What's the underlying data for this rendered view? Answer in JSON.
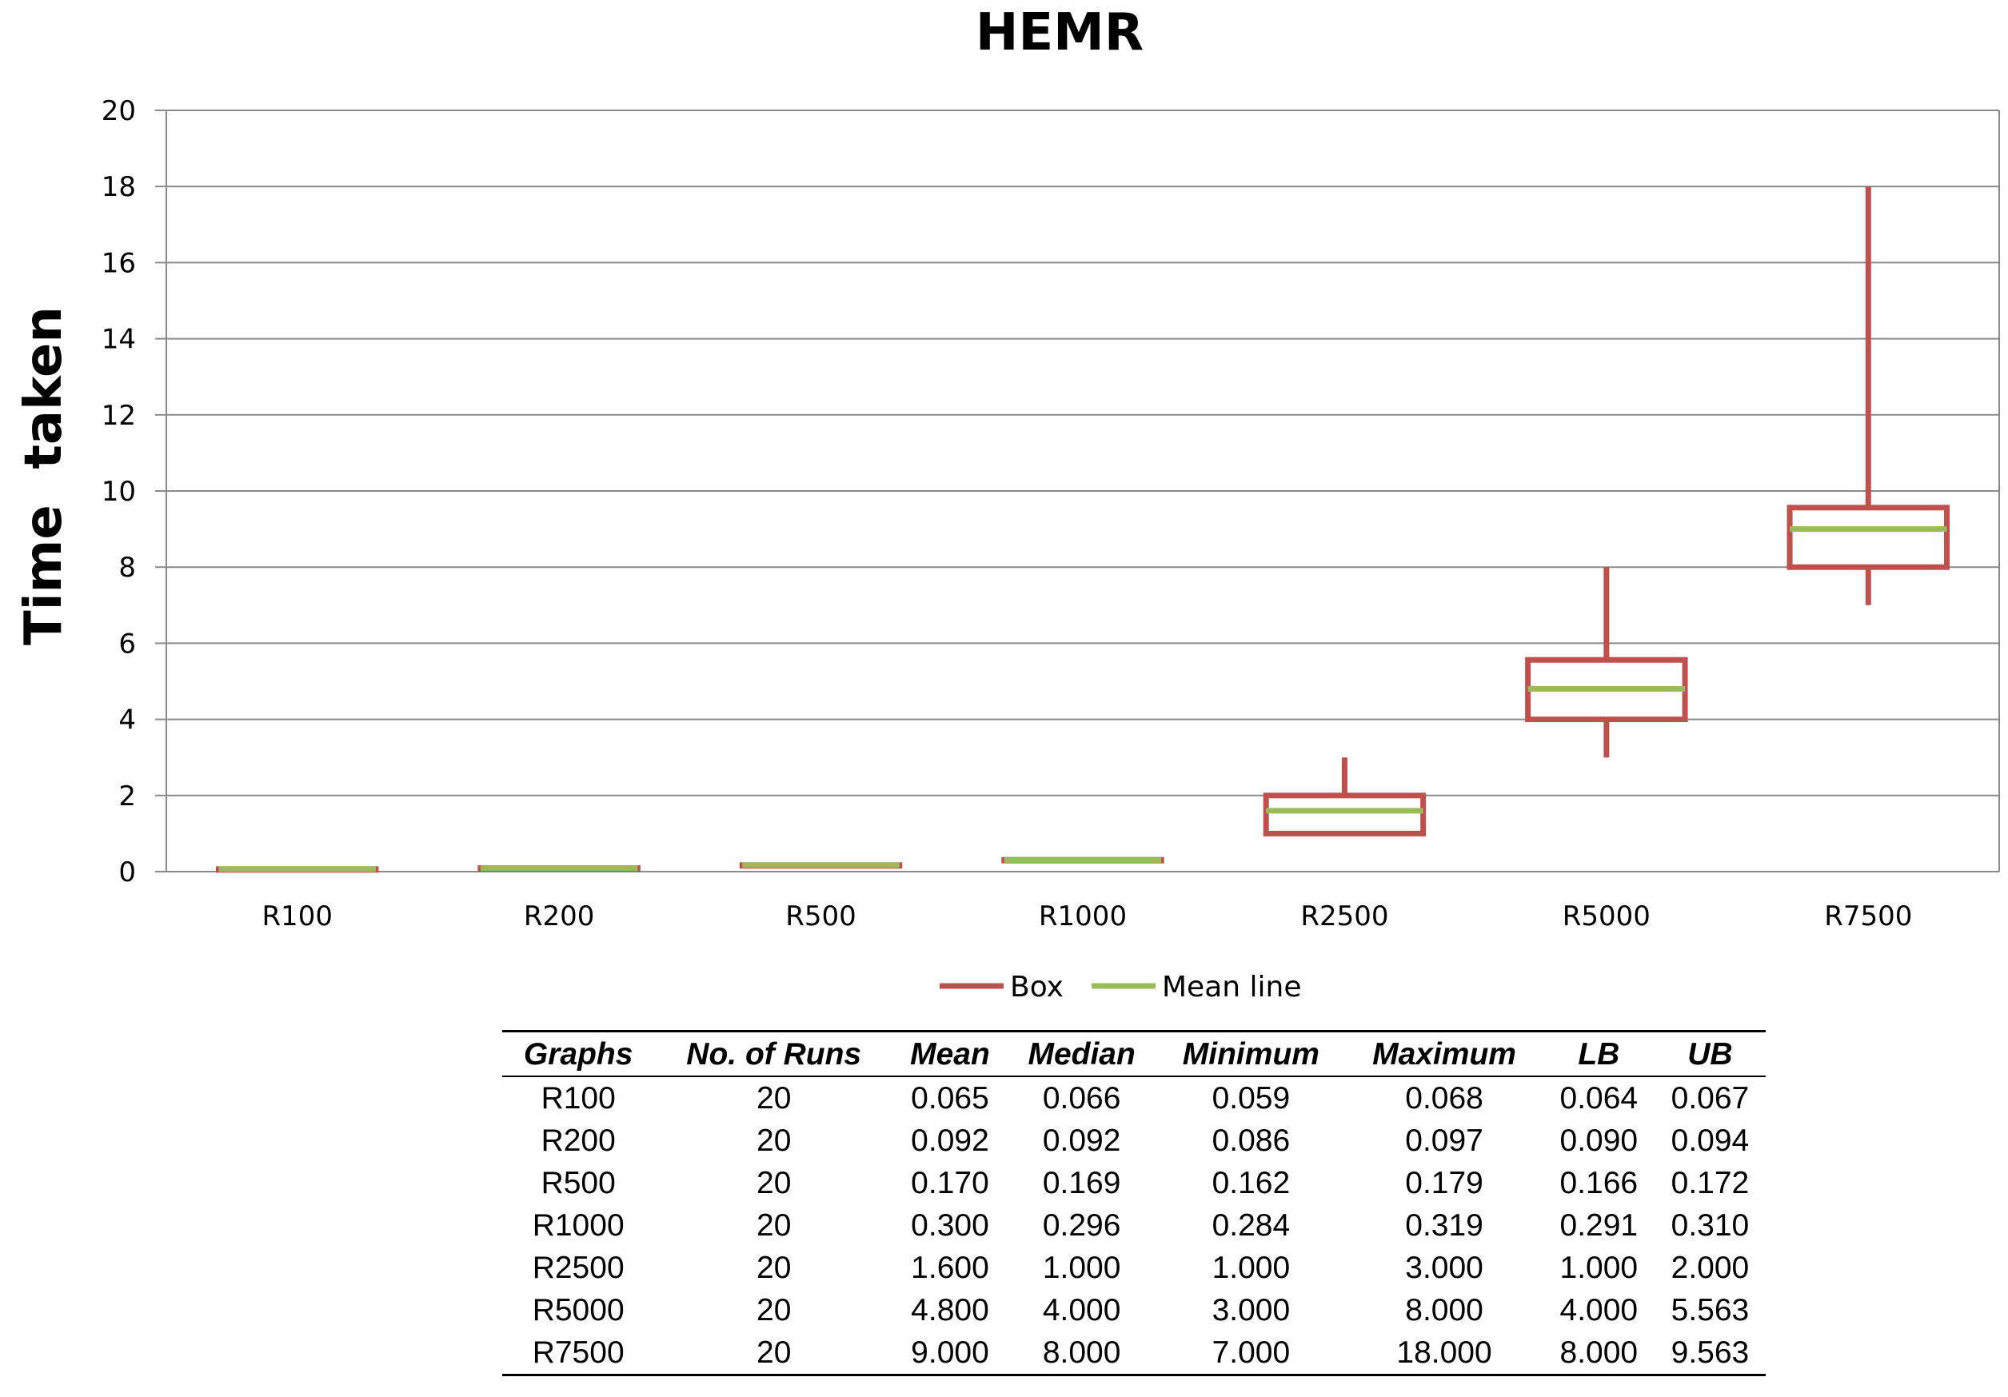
{
  "chart_data": {
    "type": "box",
    "title": "HEMR",
    "xlabel": "",
    "ylabel": "Time  taken",
    "ylim": [
      0,
      20
    ],
    "yticks": [
      0,
      2,
      4,
      6,
      8,
      10,
      12,
      14,
      16,
      18,
      20
    ],
    "grid": true,
    "legend_position": "bottom",
    "categories": [
      "R100",
      "R200",
      "R500",
      "R1000",
      "R2500",
      "R5000",
      "R7500"
    ],
    "series": [
      {
        "name": "Box",
        "color": "#C0504D",
        "min": [
          0.059,
          0.086,
          0.162,
          0.284,
          1.0,
          3.0,
          7.0
        ],
        "lower": [
          0.064,
          0.09,
          0.166,
          0.291,
          1.0,
          4.0,
          8.0
        ],
        "upper": [
          0.067,
          0.094,
          0.172,
          0.31,
          2.0,
          5.563,
          9.563
        ],
        "max": [
          0.068,
          0.097,
          0.179,
          0.319,
          3.0,
          8.0,
          18.0
        ]
      },
      {
        "name": "Mean line",
        "color": "#9BBB59",
        "values": [
          0.065,
          0.092,
          0.17,
          0.3,
          1.6,
          4.8,
          9.0
        ]
      }
    ]
  },
  "table": {
    "headers": [
      "Graphs",
      "No. of Runs",
      "Mean",
      "Median",
      "Minimum",
      "Maximum",
      "LB",
      "UB"
    ],
    "rows": [
      [
        "R100",
        "20",
        "0.065",
        "0.066",
        "0.059",
        "0.068",
        "0.064",
        "0.067"
      ],
      [
        "R200",
        "20",
        "0.092",
        "0.092",
        "0.086",
        "0.097",
        "0.090",
        "0.094"
      ],
      [
        "R500",
        "20",
        "0.170",
        "0.169",
        "0.162",
        "0.179",
        "0.166",
        "0.172"
      ],
      [
        "R1000",
        "20",
        "0.300",
        "0.296",
        "0.284",
        "0.319",
        "0.291",
        "0.310"
      ],
      [
        "R2500",
        "20",
        "1.600",
        "1.000",
        "1.000",
        "3.000",
        "1.000",
        "2.000"
      ],
      [
        "R5000",
        "20",
        "4.800",
        "4.000",
        "3.000",
        "8.000",
        "4.000",
        "5.563"
      ],
      [
        "R7500",
        "20",
        "9.000",
        "8.000",
        "7.000",
        "18.000",
        "8.000",
        "9.563"
      ]
    ]
  }
}
